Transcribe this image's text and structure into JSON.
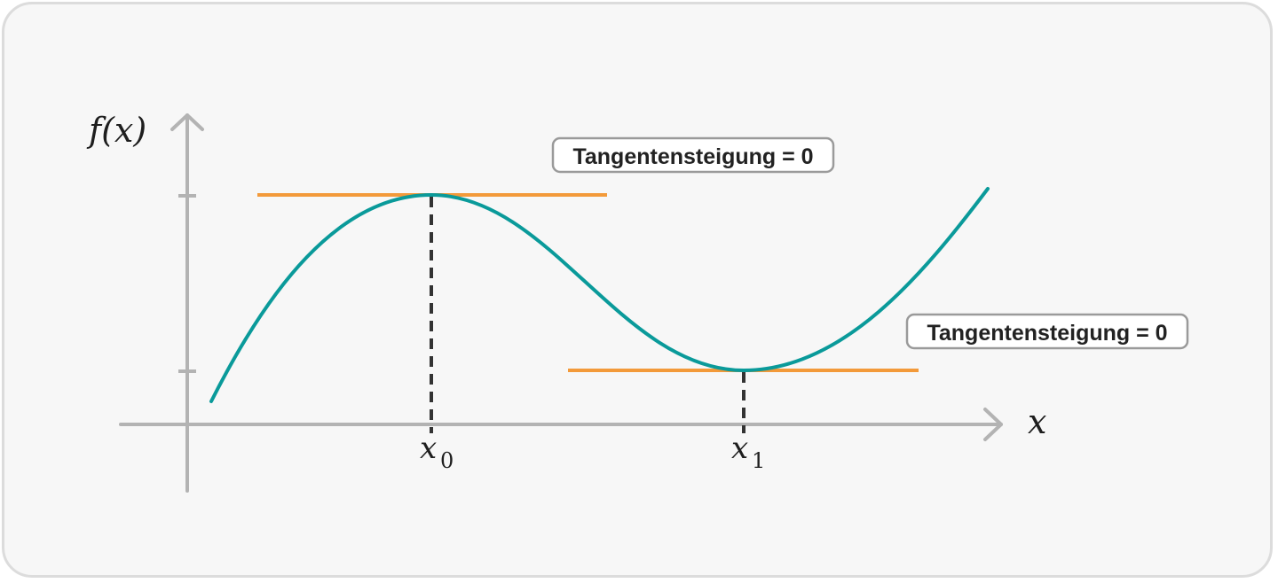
{
  "axes": {
    "y_label": "f(x)",
    "x_label": "x"
  },
  "points": [
    {
      "label_base": "x",
      "label_sub": "0"
    },
    {
      "label_base": "x",
      "label_sub": "1"
    }
  ],
  "callouts": [
    {
      "text": "Tangentensteigung = 0"
    },
    {
      "text": "Tangentensteigung = 0"
    }
  ],
  "colors": {
    "curve": "#0a9a9a",
    "tangent": "#f39a3a",
    "axis": "#b3b3b3",
    "dashed": "#333333",
    "callout_border": "#9a9a9a"
  }
}
